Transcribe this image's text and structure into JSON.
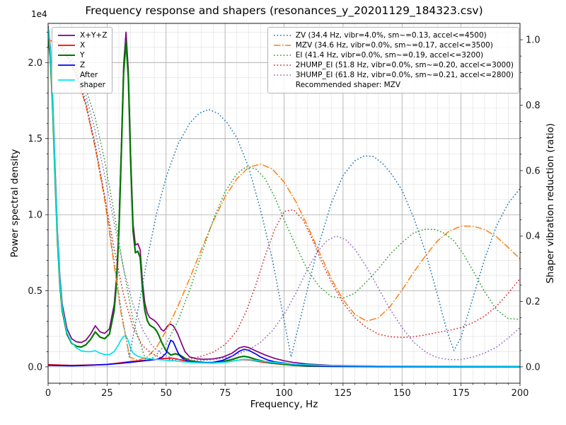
{
  "chart_data": {
    "type": "line",
    "title": "Frequency response and shapers (resonances_y_20201129_184323.csv)",
    "xlabel": "Frequency, Hz",
    "ylabel_left": "Power spectral density",
    "ylabel_right": "Shaper vibration reduction (ratio)",
    "y_offset_text": "1e4",
    "recommended_shaper": "MZV",
    "legend_right_footer": "Recommended shaper: MZV",
    "xlim": [
      0,
      200
    ],
    "ylim_left": [
      -1075,
      22575
    ],
    "ylim_right": [
      -0.05,
      1.05
    ],
    "x_ticks": [
      0,
      25,
      50,
      75,
      100,
      125,
      150,
      175,
      200
    ],
    "x_minor_step": 5,
    "y_minor_step_left": 1000,
    "y_ticks_left": {
      "values": [
        0,
        5000,
        10000,
        15000,
        20000
      ],
      "labels": [
        "0.0",
        "0.5",
        "1.0",
        "1.5",
        "2.0"
      ]
    },
    "y_ticks_right": {
      "values": [
        0,
        0.2,
        0.4,
        0.6,
        0.8,
        1.0
      ],
      "labels": [
        "0.0",
        "0.2",
        "0.4",
        "0.6",
        "0.8",
        "1.0"
      ]
    },
    "grid": {
      "major_color": "#a6a6a6",
      "minor_color": "#dedede"
    },
    "series": [
      {
        "name": "x-y-z",
        "label": "X+Y+Z",
        "legend": "left",
        "axis": "left",
        "style": "solid",
        "width": 1.7,
        "color": "#800080",
        "x": [
          0,
          1,
          2,
          3,
          4,
          5,
          6,
          8,
          10,
          12,
          14,
          16,
          18,
          20,
          22,
          24,
          26,
          28,
          29,
          30,
          31,
          32,
          33,
          34,
          35,
          36,
          37,
          38,
          39,
          40,
          41,
          42,
          43,
          44,
          45,
          46,
          47,
          48,
          49,
          50,
          51,
          52,
          53,
          54,
          55,
          56,
          58,
          60,
          63,
          66,
          70,
          74,
          78,
          81,
          83,
          85,
          88,
          92,
          96,
          100,
          104,
          110,
          120,
          140,
          170,
          200
        ],
        "y": [
          22400,
          20900,
          17400,
          12900,
          8800,
          5900,
          4100,
          2500,
          1850,
          1650,
          1600,
          1750,
          2150,
          2700,
          2300,
          2200,
          2500,
          4100,
          5900,
          9300,
          14300,
          19800,
          22000,
          19500,
          13900,
          9400,
          8000,
          8100,
          7700,
          5600,
          4200,
          3550,
          3250,
          3150,
          3050,
          2900,
          2700,
          2450,
          2350,
          2550,
          2750,
          2800,
          2700,
          2450,
          2150,
          1750,
          1000,
          650,
          530,
          500,
          520,
          640,
          900,
          1250,
          1330,
          1270,
          1050,
          780,
          560,
          400,
          290,
          180,
          100,
          50,
          30,
          25
        ]
      },
      {
        "name": "x",
        "label": "X",
        "legend": "left",
        "axis": "left",
        "style": "solid",
        "width": 1.7,
        "color": "#ff0000",
        "x": [
          0,
          5,
          10,
          15,
          20,
          25,
          30,
          35,
          40,
          45,
          48,
          50,
          52,
          54,
          56,
          60,
          65,
          70,
          75,
          80,
          83,
          86,
          90,
          95,
          100,
          105,
          110,
          120,
          140,
          170,
          200
        ],
        "y": [
          150,
          120,
          100,
          110,
          130,
          160,
          250,
          350,
          420,
          480,
          520,
          560,
          580,
          540,
          460,
          330,
          260,
          250,
          300,
          430,
          480,
          440,
          330,
          230,
          160,
          110,
          80,
          50,
          25,
          15,
          10
        ]
      },
      {
        "name": "y",
        "label": "Y",
        "legend": "left",
        "axis": "left",
        "style": "solid",
        "width": 2.2,
        "color": "#007800",
        "x": [
          0,
          1,
          2,
          3,
          4,
          5,
          6,
          8,
          10,
          12,
          14,
          16,
          18,
          20,
          22,
          24,
          26,
          28,
          29,
          30,
          31,
          32,
          33,
          34,
          35,
          36,
          37,
          38,
          39,
          40,
          41,
          42,
          43,
          44,
          45,
          46,
          47,
          48,
          50,
          52,
          54,
          56,
          58,
          60,
          63,
          66,
          70,
          74,
          78,
          81,
          83,
          85,
          88,
          92,
          96,
          100,
          104,
          110,
          120,
          140,
          170,
          200
        ],
        "y": [
          21800,
          20300,
          16800,
          12300,
          8300,
          5400,
          3700,
          2150,
          1550,
          1350,
          1300,
          1450,
          1800,
          2300,
          1950,
          1850,
          2150,
          3700,
          5500,
          8900,
          13900,
          19300,
          21400,
          19000,
          13400,
          8900,
          7500,
          7600,
          7200,
          5100,
          3700,
          3050,
          2750,
          2650,
          2550,
          2350,
          2050,
          1650,
          1050,
          780,
          860,
          760,
          560,
          420,
          330,
          290,
          270,
          340,
          490,
          640,
          690,
          640,
          490,
          340,
          240,
          170,
          110,
          60,
          35,
          20,
          12,
          10
        ]
      },
      {
        "name": "z",
        "label": "Z",
        "legend": "left",
        "axis": "left",
        "style": "solid",
        "width": 1.7,
        "color": "#0000ff",
        "x": [
          0,
          5,
          10,
          15,
          20,
          25,
          30,
          35,
          40,
          44,
          46,
          48,
          50,
          51,
          52,
          53,
          54,
          55,
          56,
          58,
          60,
          63,
          66,
          70,
          74,
          78,
          81,
          83,
          85,
          88,
          90,
          93,
          96,
          100,
          104,
          108,
          112,
          120,
          140,
          170,
          200
        ],
        "y": [
          100,
          80,
          70,
          90,
          120,
          160,
          220,
          300,
          380,
          450,
          500,
          600,
          900,
          1350,
          1750,
          1650,
          1300,
          950,
          700,
          450,
          330,
          280,
          270,
          300,
          430,
          700,
          1020,
          1150,
          1090,
          850,
          650,
          450,
          330,
          250,
          160,
          100,
          70,
          40,
          20,
          12,
          10
        ]
      },
      {
        "name": "after-shaper",
        "label": "After\nshaper",
        "legend": "left",
        "axis": "left",
        "style": "solid",
        "width": 1.7,
        "color": "#00e5ee",
        "x": [
          0,
          1,
          2,
          3,
          4,
          5,
          6,
          8,
          10,
          12,
          14,
          16,
          18,
          20,
          22,
          24,
          26,
          28,
          30,
          31,
          32,
          33,
          34,
          35,
          36,
          38,
          40,
          42,
          45,
          48,
          50,
          52,
          54,
          56,
          60,
          65,
          70,
          75,
          80,
          83,
          86,
          90,
          95,
          100,
          105,
          110,
          120,
          140,
          170,
          200
        ],
        "y": [
          22300,
          20700,
          17100,
          12500,
          8500,
          5600,
          3850,
          2250,
          1600,
          1250,
          1050,
          1000,
          1000,
          1060,
          900,
          810,
          800,
          1000,
          1500,
          1800,
          2000,
          2050,
          1700,
          1200,
          900,
          700,
          600,
          550,
          500,
          460,
          430,
          410,
          390,
          350,
          300,
          260,
          255,
          300,
          420,
          500,
          460,
          380,
          300,
          230,
          170,
          130,
          80,
          55,
          45,
          40
        ]
      },
      {
        "name": "zv",
        "label": "ZV (34.4 Hz, vibr=4.0%, sm~=0.13, accel<=4500)",
        "legend": "right",
        "axis": "right",
        "style": "dotted",
        "width": 1.5,
        "color": "#1f77b4",
        "x": [
          0,
          4,
          8,
          12,
          16,
          20,
          24,
          28,
          31,
          34.4,
          38,
          42,
          46,
          50,
          55,
          60,
          64,
          68,
          72,
          76,
          80,
          85,
          90,
          95,
          99,
          103,
          107,
          111,
          115,
          120,
          125,
          130,
          134,
          138,
          142,
          146,
          150,
          155,
          160,
          165,
          169,
          172,
          175,
          180,
          185,
          190,
          195,
          200
        ],
        "y": [
          1.0,
          0.99,
          0.96,
          0.9,
          0.81,
          0.68,
          0.52,
          0.32,
          0.17,
          0.03,
          0.17,
          0.33,
          0.47,
          0.58,
          0.68,
          0.745,
          0.775,
          0.787,
          0.775,
          0.745,
          0.7,
          0.61,
          0.48,
          0.33,
          0.18,
          0.03,
          0.15,
          0.27,
          0.38,
          0.5,
          0.585,
          0.63,
          0.645,
          0.643,
          0.62,
          0.585,
          0.54,
          0.455,
          0.35,
          0.22,
          0.11,
          0.05,
          0.09,
          0.21,
          0.33,
          0.43,
          0.5,
          0.545
        ]
      },
      {
        "name": "mzv",
        "label": "MZV (34.6 Hz, vibr=0.0%, sm~=0.17, accel<=3500)",
        "legend": "right",
        "axis": "right",
        "style": "dashdot",
        "width": 1.5,
        "color": "#ff7f0e",
        "x": [
          0,
          4,
          8,
          12,
          16,
          20,
          24,
          28,
          31,
          34.6,
          38,
          42,
          46,
          50,
          55,
          60,
          65,
          70,
          75,
          80,
          85,
          90,
          95,
          100,
          105,
          110,
          115,
          120,
          125,
          130,
          135,
          140,
          145,
          150,
          155,
          160,
          165,
          170,
          175,
          180,
          185,
          190,
          195,
          200
        ],
        "y": [
          1.0,
          0.99,
          0.95,
          0.89,
          0.8,
          0.67,
          0.51,
          0.31,
          0.16,
          0.03,
          0.02,
          0.03,
          0.06,
          0.11,
          0.185,
          0.27,
          0.36,
          0.445,
          0.52,
          0.575,
          0.61,
          0.62,
          0.605,
          0.565,
          0.505,
          0.43,
          0.35,
          0.27,
          0.205,
          0.16,
          0.14,
          0.15,
          0.185,
          0.235,
          0.29,
          0.34,
          0.385,
          0.415,
          0.43,
          0.43,
          0.42,
          0.398,
          0.365,
          0.33
        ]
      },
      {
        "name": "ei",
        "label": "EI (41.4 Hz, vibr=0.0%, sm~=0.19, accel<=3200)",
        "legend": "right",
        "axis": "right",
        "style": "dotted",
        "width": 1.5,
        "color": "#2ca02c",
        "x": [
          0,
          4,
          8,
          12,
          16,
          20,
          24,
          28,
          32,
          36,
          41.4,
          45,
          50,
          55,
          60,
          65,
          70,
          75,
          80,
          84,
          88,
          92,
          96,
          100,
          105,
          110,
          115,
          120,
          125,
          130,
          135,
          140,
          145,
          150,
          155,
          160,
          164,
          168,
          172,
          176,
          180,
          185,
          190,
          195,
          200
        ],
        "y": [
          1.0,
          0.99,
          0.97,
          0.92,
          0.85,
          0.76,
          0.63,
          0.47,
          0.3,
          0.14,
          0.02,
          0.03,
          0.07,
          0.14,
          0.235,
          0.345,
          0.45,
          0.535,
          0.59,
          0.612,
          0.605,
          0.575,
          0.52,
          0.45,
          0.37,
          0.295,
          0.245,
          0.215,
          0.21,
          0.225,
          0.26,
          0.3,
          0.345,
          0.38,
          0.41,
          0.421,
          0.42,
          0.408,
          0.385,
          0.345,
          0.295,
          0.23,
          0.175,
          0.148,
          0.145
        ]
      },
      {
        "name": "2hump-ei",
        "label": "2HUMP_EI (51.8 Hz, vibr=0.0%, sm~=0.20, accel<=3000)",
        "legend": "right",
        "axis": "right",
        "style": "dotted",
        "width": 1.5,
        "color": "#d62728",
        "x": [
          0,
          4,
          8,
          12,
          16,
          20,
          24,
          28,
          32,
          36,
          40,
          44,
          48,
          52,
          56,
          60,
          65,
          70,
          75,
          80,
          84,
          88,
          92,
          96,
          100,
          104,
          108,
          112,
          116,
          120,
          125,
          130,
          135,
          140,
          145,
          150,
          155,
          160,
          165,
          170,
          175,
          180,
          185,
          190,
          195,
          200
        ],
        "y": [
          1.0,
          0.99,
          0.95,
          0.89,
          0.8,
          0.67,
          0.52,
          0.36,
          0.22,
          0.12,
          0.065,
          0.04,
          0.028,
          0.022,
          0.022,
          0.025,
          0.032,
          0.045,
          0.068,
          0.11,
          0.17,
          0.25,
          0.34,
          0.42,
          0.475,
          0.48,
          0.45,
          0.39,
          0.32,
          0.26,
          0.195,
          0.15,
          0.12,
          0.1,
          0.092,
          0.09,
          0.092,
          0.098,
          0.105,
          0.112,
          0.12,
          0.135,
          0.155,
          0.185,
          0.225,
          0.27
        ]
      },
      {
        "name": "3hump-ei",
        "label": "3HUMP_EI (61.8 Hz, vibr=0.0%, sm~=0.21, accel<=2800)",
        "legend": "right",
        "axis": "right",
        "style": "dotted",
        "width": 1.5,
        "color": "#9467bd",
        "x": [
          0,
          4,
          8,
          12,
          16,
          20,
          24,
          28,
          32,
          36,
          40,
          44,
          48,
          52,
          56,
          61.8,
          66,
          70,
          75,
          80,
          85,
          90,
          95,
          100,
          105,
          110,
          114,
          118,
          122,
          126,
          130,
          135,
          140,
          145,
          150,
          155,
          160,
          165,
          170,
          175,
          180,
          185,
          190,
          195,
          200
        ],
        "y": [
          1.0,
          0.99,
          0.96,
          0.91,
          0.83,
          0.72,
          0.585,
          0.44,
          0.3,
          0.19,
          0.115,
          0.065,
          0.04,
          0.028,
          0.022,
          0.02,
          0.02,
          0.022,
          0.028,
          0.038,
          0.052,
          0.075,
          0.11,
          0.16,
          0.225,
          0.3,
          0.35,
          0.385,
          0.4,
          0.39,
          0.36,
          0.305,
          0.24,
          0.175,
          0.12,
          0.075,
          0.045,
          0.028,
          0.022,
          0.022,
          0.03,
          0.042,
          0.06,
          0.088,
          0.12
        ]
      }
    ]
  }
}
